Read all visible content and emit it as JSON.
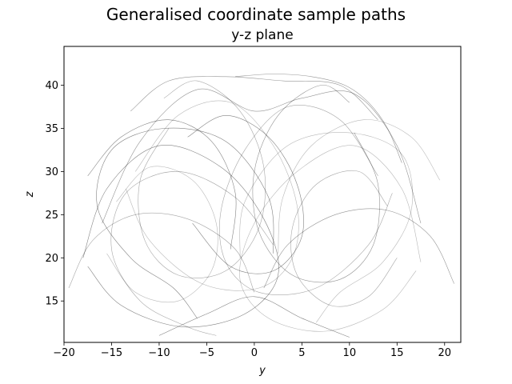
{
  "figure": {
    "suptitle": "Generalised coordinate sample paths"
  },
  "chart_data": {
    "type": "line",
    "title": "y-z plane",
    "xlabel": "y",
    "ylabel": "z",
    "xlim": [
      -20,
      21.7
    ],
    "ylim": [
      10.2,
      44.5
    ],
    "xticks": [
      -20,
      -15,
      -10,
      -5,
      0,
      5,
      10,
      15,
      20
    ],
    "yticks": [
      15,
      20,
      25,
      30,
      35,
      40
    ],
    "xtick_labels": [
      "−20",
      "−15",
      "−10",
      "−5",
      "0",
      "5",
      "10",
      "15",
      "20"
    ],
    "ytick_labels": [
      "15",
      "20",
      "25",
      "30",
      "35",
      "40"
    ],
    "grid": false,
    "legend": "none",
    "line_color": "#000000",
    "series": [
      {
        "x": [
          -12.5,
          -8.0,
          -2.5,
          2.0,
          4.5,
          4.0,
          0.5,
          -5.5,
          -11.0,
          -13.5
        ],
        "y": [
          30.0,
          36.5,
          38.0,
          33.0,
          26.0,
          20.0,
          16.5,
          17.0,
          22.0,
          28.0
        ]
      },
      {
        "x": [
          13.0,
          9.0,
          3.5,
          -1.0,
          -3.5,
          -3.0,
          0.5,
          6.5,
          12.0,
          14.5
        ],
        "y": [
          29.5,
          36.0,
          37.5,
          32.5,
          25.5,
          19.5,
          16.0,
          16.5,
          21.5,
          27.5
        ]
      },
      {
        "x": [
          -16.0,
          -12.0,
          -6.0,
          0.0,
          5.0,
          10.5,
          15.0,
          17.5
        ],
        "y": [
          24.0,
          33.5,
          39.5,
          37.0,
          38.5,
          39.0,
          33.0,
          24.0
        ]
      },
      {
        "x": [
          -18.0,
          -15.5,
          -10.0,
          -3.5,
          1.0,
          2.5,
          -1.0,
          -7.5,
          -14.0,
          -17.5
        ],
        "y": [
          20.0,
          28.0,
          33.0,
          30.5,
          24.5,
          18.0,
          13.5,
          12.0,
          14.5,
          19.0
        ]
      },
      {
        "x": [
          17.5,
          15.5,
          10.5,
          4.5,
          0.0,
          -1.5,
          1.5,
          7.5,
          13.5,
          17.0
        ],
        "y": [
          19.5,
          28.0,
          33.0,
          30.0,
          24.0,
          17.5,
          13.0,
          11.5,
          14.0,
          18.5
        ]
      },
      {
        "x": [
          -9.5,
          -6.0,
          -1.5,
          1.0,
          0.5,
          -3.0,
          -8.0,
          -11.5,
          -12.0,
          -9.0
        ],
        "y": [
          38.5,
          40.5,
          37.0,
          30.5,
          23.5,
          18.5,
          18.0,
          22.0,
          29.0,
          35.0
        ]
      },
      {
        "x": [
          10.0,
          7.0,
          2.5,
          0.0,
          0.5,
          4.0,
          9.0,
          12.5,
          13.0,
          10.5
        ],
        "y": [
          38.0,
          40.0,
          36.5,
          30.0,
          23.0,
          18.0,
          17.5,
          21.5,
          28.5,
          34.5
        ]
      },
      {
        "x": [
          -6.0,
          -8.5,
          -13.0,
          -16.5,
          -15.0,
          -9.5,
          -3.0,
          1.5,
          2.0
        ],
        "y": [
          13.0,
          16.5,
          20.0,
          26.0,
          32.5,
          35.0,
          33.5,
          27.0,
          20.5
        ]
      },
      {
        "x": [
          6.5,
          9.0,
          13.5,
          16.5,
          15.5,
          10.0,
          3.5,
          -1.0,
          -1.5
        ],
        "y": [
          12.5,
          16.0,
          19.5,
          25.5,
          32.0,
          34.5,
          33.0,
          26.5,
          20.0
        ]
      },
      {
        "x": [
          -4.0,
          -7.0,
          -12.0,
          -15.0,
          -13.5,
          -8.0,
          -2.0,
          2.0
        ],
        "y": [
          11.0,
          12.0,
          15.0,
          21.0,
          27.5,
          30.0,
          27.0,
          21.5
        ]
      },
      {
        "x": [
          -13.0,
          -9.0,
          -3.0,
          3.0,
          9.0,
          13.0
        ],
        "y": [
          37.0,
          40.5,
          41.0,
          40.5,
          40.0,
          36.0
        ]
      },
      {
        "x": [
          -17.5,
          -14.0,
          -9.0,
          -4.5,
          -2.0,
          -2.5
        ],
        "y": [
          29.5,
          34.0,
          36.0,
          33.5,
          27.5,
          21.0
        ]
      },
      {
        "x": [
          19.5,
          16.5,
          11.5,
          6.0,
          3.0,
          2.5
        ],
        "y": [
          29.0,
          34.0,
          36.0,
          33.0,
          27.0,
          20.5
        ]
      },
      {
        "x": [
          -19.5,
          -17.0,
          -12.5,
          -7.0,
          -2.0,
          0.0
        ],
        "y": [
          16.5,
          22.0,
          25.0,
          24.5,
          21.0,
          16.0
        ]
      },
      {
        "x": [
          21.0,
          18.5,
          14.0,
          8.5,
          3.5,
          1.0
        ],
        "y": [
          17.0,
          22.5,
          25.5,
          25.0,
          21.5,
          16.5
        ]
      },
      {
        "x": [
          -10.0,
          -5.0,
          0.0,
          5.0,
          10.0
        ],
        "y": [
          11.0,
          13.5,
          15.5,
          13.0,
          10.8
        ]
      },
      {
        "x": [
          -14.5,
          -11.0,
          -6.5,
          -4.0,
          -4.5,
          -8.0,
          -12.5,
          -15.5
        ],
        "y": [
          26.5,
          30.5,
          29.0,
          24.0,
          18.5,
          15.0,
          16.0,
          20.5
        ]
      },
      {
        "x": [
          14.0,
          11.0,
          6.5,
          4.0,
          4.5,
          8.0,
          12.0,
          15.0
        ],
        "y": [
          26.0,
          30.0,
          28.5,
          23.5,
          18.0,
          14.5,
          15.5,
          20.0
        ]
      },
      {
        "x": [
          -2.0,
          2.0,
          6.0,
          9.5,
          12.0,
          14.0,
          15.5
        ],
        "y": [
          41.0,
          41.3,
          41.0,
          40.0,
          38.0,
          35.0,
          31.0
        ]
      },
      {
        "x": [
          -7.0,
          -3.0,
          1.5,
          4.5,
          5.0,
          2.0,
          -2.5,
          -6.5
        ],
        "y": [
          34.0,
          36.5,
          34.0,
          28.5,
          22.5,
          18.5,
          19.0,
          24.0
        ]
      }
    ]
  }
}
